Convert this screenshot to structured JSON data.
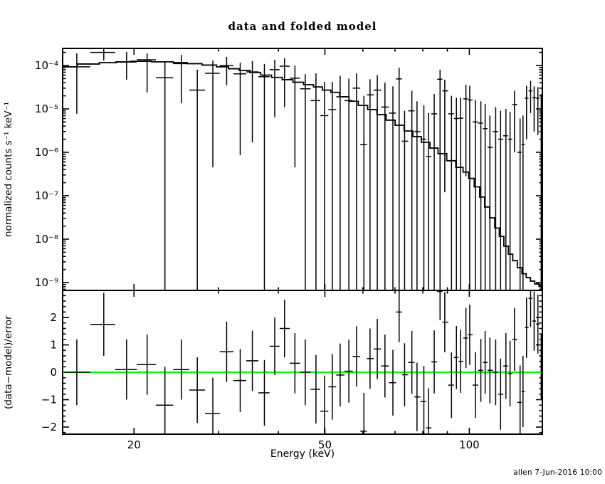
{
  "page": {
    "bg": "#ffffff",
    "fg": "#000000",
    "accent_green": "#00ff00"
  },
  "header": {
    "title": "data and folded model"
  },
  "footer": {
    "credit": "allen  7-Jun-2016 10:00"
  },
  "chart_data": {
    "type": "scatter",
    "title": "data and folded model",
    "xlabel": "Energy (keV)",
    "xscale": "log",
    "xlim": [
      14.2,
      142
    ],
    "xticks_major": {
      "values": [
        20,
        50,
        100
      ],
      "labels": [
        "20",
        "50",
        "100"
      ]
    },
    "xticks_minor": [
      30,
      40,
      60,
      70,
      80,
      90
    ],
    "grid": false,
    "legend": "none",
    "panels": [
      {
        "name": "spectrum",
        "ylabel": "normalized counts s⁻¹ keV⁻¹",
        "yscale": "log",
        "ylim": [
          6.6e-10,
          0.000247
        ],
        "yticks": {
          "values": [
            0.0001,
            1e-05,
            1e-06,
            1e-07,
            1e-08,
            1e-09
          ],
          "labels": [
            "10⁻⁴",
            "10⁻⁵",
            "10⁻⁶",
            "10⁻⁷",
            "10⁻⁸",
            "10⁻⁹"
          ]
        }
      },
      {
        "name": "residuals",
        "ylabel": "(data−model)/error",
        "yscale": "linear",
        "ylim": [
          -2.26,
          2.99
        ],
        "yticks": {
          "values": [
            -2,
            -1,
            0,
            1,
            2
          ],
          "labels": [
            "−2",
            "−1",
            "0",
            "1",
            "2"
          ]
        },
        "minor_step": 0.2,
        "zero_line": {
          "value": 0,
          "color": "#00ff00"
        }
      }
    ],
    "series": [
      {
        "name": "data",
        "role": "data-points",
        "marker": "cross-errorbar",
        "color": "#000000",
        "columns": [
          "energy_keV",
          "counts",
          "err_lo",
          "err_hi",
          "residual_sigma",
          "residual_err"
        ],
        "rows": [
          [
            15.2,
            9.3e-05,
            7.7e-06,
            0.00019,
            0.0,
            1.2
          ],
          [
            17.3,
            0.0002,
            0.00013,
            0.0003,
            1.75,
            1.15
          ],
          [
            19.3,
            0.00012,
            4.7e-05,
            0.000205,
            0.1,
            1.1
          ],
          [
            21.3,
            0.000135,
            2.4e-05,
            0.00019,
            0.28,
            1.1
          ],
          [
            23.2,
            5.2e-05,
            0,
            0.00012,
            -1.2,
            1.4
          ],
          [
            25.1,
            0.00011,
            1.35e-05,
            0.000176,
            0.1,
            1.1
          ],
          [
            27.1,
            2.7e-05,
            0,
            8e-05,
            -0.65,
            1.2
          ],
          [
            29.2,
            6.6e-05,
            4.5e-07,
            0.00013,
            -1.5,
            1.3
          ],
          [
            31.2,
            0.0001,
            3.5e-05,
            0.000157,
            0.75,
            1.1
          ],
          [
            33.3,
            6.4e-05,
            8.6e-07,
            0.000116,
            -0.3,
            1.15
          ],
          [
            35.3,
            7.1e-05,
            1.7e-06,
            0.000126,
            0.42,
            1.1
          ],
          [
            37.4,
            5.5e-05,
            0,
            0.000108,
            -0.75,
            1.2
          ],
          [
            39.3,
            8e-05,
            6.4e-06,
            0.000135,
            0.95,
            1.05
          ],
          [
            41.2,
            9.6e-05,
            1.1e-05,
            0.000146,
            1.6,
            1.05
          ],
          [
            43.3,
            5.1e-05,
            4.5e-07,
            0.0001,
            0.33,
            1.1
          ],
          [
            45.5,
            2.9e-05,
            0,
            6.3e-05,
            0.0,
            1.2
          ],
          [
            47.9,
            1.55e-05,
            0,
            6.6e-05,
            -0.62,
            1.25
          ],
          [
            49.9,
            7e-06,
            0,
            4.2e-05,
            -1.42,
            1.3
          ],
          [
            51.8,
            9.6e-06,
            0,
            4.2e-05,
            -0.53,
            1.2
          ],
          [
            53.8,
            1.9e-05,
            0,
            5.8e-05,
            -0.1,
            1.15
          ],
          [
            56.1,
            1.55e-05,
            0,
            5e-05,
            0.04,
            1.15
          ],
          [
            58.2,
            3e-05,
            0,
            6.6e-05,
            0.58,
            1.1
          ],
          [
            60.3,
            1.5e-06,
            0,
            2e-05,
            -2.15,
            1.4
          ],
          [
            62.1,
            2.1e-05,
            0,
            4.8e-05,
            0.5,
            1.1
          ],
          [
            64.3,
            2.7e-05,
            0,
            6e-05,
            0.85,
            1.1
          ],
          [
            66.7,
            1.1e-05,
            0,
            4e-05,
            0.23,
            1.15
          ],
          [
            69.3,
            8e-06,
            0,
            3.3e-05,
            -0.38,
            1.2
          ],
          [
            71.4,
            4.9e-05,
            0,
            8.9e-05,
            2.2,
            1.1
          ],
          [
            73.3,
            1.8e-06,
            0,
            9e-06,
            -0.09,
            1.15
          ],
          [
            75.9,
            9e-06,
            0,
            2.6e-05,
            0.36,
            1.15
          ],
          [
            77.8,
            3e-06,
            0,
            1.5e-05,
            -0.9,
            1.25
          ],
          [
            80.4,
            2e-06,
            0,
            1.2e-05,
            -1.07,
            1.3
          ],
          [
            82.2,
            8e-07,
            0,
            8e-06,
            -2.03,
            1.45
          ],
          [
            84.5,
            7.7e-06,
            0,
            2.2e-05,
            0.38,
            1.15
          ],
          [
            86.9,
            4.8e-05,
            0,
            8e-05,
            2.95,
            1.05
          ],
          [
            88.9,
            2.6e-05,
            1.2e-07,
            4.7e-05,
            1.83,
            1.1
          ],
          [
            91.8,
            7.7e-06,
            0,
            2e-05,
            -0.47,
            1.2
          ],
          [
            94.0,
            6e-06,
            0,
            1.8e-05,
            0.54,
            1.15
          ],
          [
            95.9,
            6.1e-06,
            0,
            1.8e-05,
            0.4,
            1.15
          ],
          [
            98.4,
            1.7e-05,
            2.8e-07,
            3.6e-05,
            1.25,
            1.1
          ],
          [
            100.2,
            1.6e-05,
            0,
            3.4e-05,
            1.37,
            1.1
          ],
          [
            103.0,
            5e-06,
            0,
            1.6e-05,
            -0.47,
            1.2
          ],
          [
            105.7,
            4.7e-06,
            0,
            1.5e-05,
            0.07,
            1.15
          ],
          [
            107.9,
            3.5e-06,
            0,
            1.3e-05,
            0.36,
            1.15
          ],
          [
            110.4,
            1.3e-06,
            0,
            7e-06,
            0.07,
            1.2
          ],
          [
            113.5,
            3e-06,
            0,
            1.1e-05,
            0.0,
            1.2
          ],
          [
            116.2,
            2e-06,
            0,
            9e-06,
            -0.8,
            1.3
          ],
          [
            119.2,
            2.4e-06,
            0,
            1e-05,
            0.23,
            1.2
          ],
          [
            121.6,
            2e-06,
            0,
            8.5e-06,
            -0.05,
            1.2
          ],
          [
            124.2,
            1.26e-05,
            1e-06,
            2.6e-05,
            1.2,
            1.15
          ],
          [
            127.6,
            1e-06,
            0,
            6e-06,
            -1.1,
            1.35
          ],
          [
            129.4,
            1.5e-06,
            0,
            7e-06,
            -0.7,
            1.3
          ],
          [
            131.6,
            1.76e-05,
            2e-06,
            3.4e-05,
            1.63,
            1.1
          ],
          [
            134.2,
            2.6e-05,
            8e-06,
            4.4e-05,
            2.7,
            1.05
          ],
          [
            136.5,
            1.8e-05,
            3e-06,
            3.3e-05,
            1.87,
            1.08
          ],
          [
            139.0,
            1.76e-05,
            2.5e-06,
            3.2e-05,
            1.76,
            1.08
          ],
          [
            141.2,
            9e-06,
            0,
            2.2e-05,
            0.2,
            1.2
          ]
        ]
      },
      {
        "name": "folded model",
        "role": "model-step",
        "color": "#000000",
        "columns": [
          "energy_keV",
          "counts"
        ],
        "rows": [
          [
            14.3,
            9.3e-05
          ],
          [
            16.2,
            0.000108
          ],
          [
            17.7,
            0.000116
          ],
          [
            19.1,
            0.000121
          ],
          [
            20.3,
            0.000125
          ],
          [
            23.3,
            0.000121
          ],
          [
            25.0,
            0.000116
          ],
          [
            26.7,
            0.00011
          ],
          [
            28.8,
            0.000102
          ],
          [
            30.7,
            9.3e-05
          ],
          [
            32.3,
            8.4e-05
          ],
          [
            34.0,
            7.7e-05
          ],
          [
            35.8,
            6.9e-05
          ],
          [
            37.7,
            6e-05
          ],
          [
            39.7,
            5.3e-05
          ],
          [
            41.8,
            4.7e-05
          ],
          [
            44.0,
            4.1e-05
          ],
          [
            46.3,
            3.6e-05
          ],
          [
            48.4,
            3.2e-05
          ],
          [
            50.4,
            2.7e-05
          ],
          [
            52.5,
            2.4e-05
          ],
          [
            54.9,
            1.9e-05
          ],
          [
            57.4,
            1.5e-05
          ],
          [
            60.0,
            1.2e-05
          ],
          [
            62.8,
            9.6e-06
          ],
          [
            65.6,
            7.4e-06
          ],
          [
            68.6,
            5.5e-06
          ],
          [
            71.5,
            4.2e-06
          ],
          [
            74.8,
            3.1e-06
          ],
          [
            77.8,
            2.3e-06
          ],
          [
            81.1,
            1.7e-06
          ],
          [
            84.5,
            1.25e-06
          ],
          [
            87.7,
            9.3e-07
          ],
          [
            91.8,
            6.4e-07
          ],
          [
            95.7,
            4.5e-07
          ],
          [
            98.4,
            3.5e-07
          ],
          [
            101.0,
            2.5e-07
          ],
          [
            103.8,
            1.6e-07
          ],
          [
            106.4,
            9.3e-08
          ],
          [
            108.9,
            5.5e-08
          ],
          [
            111.7,
            3.1e-08
          ],
          [
            114.3,
            1.8e-08
          ],
          [
            116.7,
            1.16e-08
          ],
          [
            119.4,
            6.9e-09
          ],
          [
            121.9,
            4.5e-09
          ],
          [
            124.5,
            3.2e-09
          ],
          [
            127.4,
            2.2e-09
          ],
          [
            130.1,
            1.6e-09
          ],
          [
            132.7,
            1.3e-09
          ],
          [
            135.5,
            1.08e-09
          ],
          [
            138.3,
            9.3e-10
          ],
          [
            141.2,
            8.3e-10
          ],
          [
            143.5,
            7.7e-10
          ]
        ]
      }
    ]
  }
}
